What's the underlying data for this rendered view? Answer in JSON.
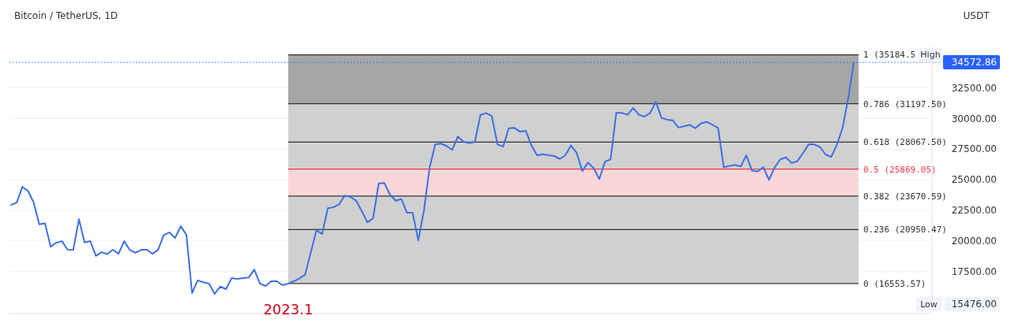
{
  "chart_data": {
    "type": "line",
    "title": "Bitcoin / TetherUS, 1D",
    "ylabel": "USDT",
    "categories": [
      null,
      null,
      null,
      null,
      null,
      null,
      null,
      null,
      null,
      null,
      null,
      null,
      null,
      null,
      null,
      null,
      null,
      null,
      null,
      null,
      null,
      null,
      null,
      null,
      null,
      null,
      null,
      null,
      null,
      null,
      null,
      null,
      null,
      null,
      null,
      null,
      null,
      null,
      null,
      null,
      null,
      null,
      null,
      null,
      null,
      null,
      null,
      null,
      null,
      null,
      null,
      null,
      null,
      null,
      null,
      null,
      null,
      null,
      null,
      null,
      null,
      null,
      null,
      null,
      null,
      null,
      null,
      null,
      null,
      null,
      null,
      null,
      null,
      null,
      null,
      null,
      null,
      null,
      null,
      null,
      null,
      null,
      null,
      null,
      null,
      null,
      null,
      null,
      null,
      null,
      null,
      null,
      null,
      null,
      null,
      null,
      null,
      null,
      null,
      null,
      null,
      null,
      null,
      null,
      null,
      null,
      null,
      null,
      null,
      null,
      null,
      null,
      null,
      null,
      null,
      null,
      null,
      null,
      null,
      null,
      null,
      null,
      null,
      null,
      null,
      null,
      null,
      null,
      null,
      null,
      null,
      null,
      null,
      null,
      null,
      null,
      null,
      null,
      null,
      null,
      null,
      null,
      null,
      null,
      null,
      null,
      null,
      null,
      null,
      null
    ],
    "series": [
      {
        "color": "#3d6fe3",
        "values": [
          22950,
          23140,
          24420,
          24100,
          23140,
          21370,
          21450,
          19550,
          19870,
          20000,
          19300,
          19290,
          21790,
          19900,
          20000,
          18800,
          19100,
          18950,
          19300,
          18970,
          20000,
          19270,
          19050,
          19300,
          19300,
          18970,
          19290,
          20500,
          20710,
          20260,
          21220,
          20510,
          15770,
          16800,
          16650,
          16540,
          15710,
          16300,
          16090,
          16990,
          16920,
          16990,
          17030,
          17690,
          16540,
          16350,
          16730,
          16730,
          16410,
          16550,
          16730,
          16960,
          17270,
          19100,
          20900,
          20580,
          22680,
          22760,
          23000,
          23720,
          23600,
          23300,
          22460,
          21540,
          21860,
          24700,
          24740,
          23780,
          23300,
          23430,
          22310,
          22310,
          20060,
          22500,
          26000,
          27880,
          27950,
          27760,
          27440,
          28530,
          28100,
          28000,
          28080,
          30300,
          30430,
          30190,
          27880,
          27700,
          29200,
          29230,
          28910,
          29000,
          27800,
          26990,
          27090,
          27000,
          26940,
          26700,
          26990,
          27800,
          27200,
          25710,
          26400,
          25960,
          25060,
          26470,
          26670,
          30450,
          30450,
          30300,
          30850,
          30300,
          30150,
          30450,
          31350,
          30050,
          29900,
          29840,
          29260,
          29360,
          29470,
          29200,
          29600,
          29720,
          29480,
          29230,
          26030,
          26130,
          26220,
          26080,
          27000,
          25750,
          25670,
          26030,
          25000,
          26010,
          26670,
          26830,
          26370,
          26510,
          27160,
          27880,
          27880,
          27680,
          27070,
          26860,
          27850,
          29200,
          31600,
          34572.86
        ]
      }
    ],
    "ylim": [
      14100,
      35800
    ],
    "yticks": [
      {
        "value": 17500,
        "label": "17500.00"
      },
      {
        "value": 20000,
        "label": "20000.00"
      },
      {
        "value": 22500,
        "label": "22500.00"
      },
      {
        "value": 25000,
        "label": "25000.00"
      },
      {
        "value": 27500,
        "label": "27500.00"
      },
      {
        "value": 30000,
        "label": "30000.00"
      },
      {
        "value": 32500,
        "label": "32500.00"
      }
    ],
    "grid": "y",
    "marker": "none",
    "line_style": "solid",
    "bands": [
      {
        "axis": "y",
        "from": 31197.5,
        "to": 35184.5,
        "color": "#a6a6a6"
      },
      {
        "axis": "y",
        "from": 25869.05,
        "to": 31197.5,
        "color": "#d0d0d0"
      },
      {
        "axis": "y",
        "from": 23670.59,
        "to": 25869.05,
        "color": "#f8d6d9"
      },
      {
        "axis": "y",
        "from": 16553.57,
        "to": 23670.59,
        "color": "#d0d0d0"
      }
    ],
    "ref_lines": [
      {
        "axis": "y",
        "value": 35184.5,
        "label": "1 (35184.5",
        "color": "#333333"
      },
      {
        "axis": "y",
        "value": 31197.5,
        "label": "0.786 (31197.50)",
        "color": "#333333"
      },
      {
        "axis": "y",
        "value": 28067.5,
        "label": "0.618 (28067.50)",
        "color": "#333333"
      },
      {
        "axis": "y",
        "value": 25869.05,
        "label": "0.5 (25869.05)",
        "color": "#f23645"
      },
      {
        "axis": "y",
        "value": 23670.59,
        "label": "0.382 (23670.59)",
        "color": "#333333"
      },
      {
        "axis": "y",
        "value": 20950.47,
        "label": "0.236 (20950.47)",
        "color": "#333333"
      },
      {
        "axis": "y",
        "value": 16553.57,
        "label": "0 (16553.57)",
        "color": "#333333"
      },
      {
        "axis": "y",
        "value": 34572.86,
        "label": "34572.86",
        "color": "#2962ff",
        "line_style": "dotted"
      }
    ],
    "annotations": [
      "2023.1",
      "High",
      "Low",
      "15476.00"
    ]
  }
}
